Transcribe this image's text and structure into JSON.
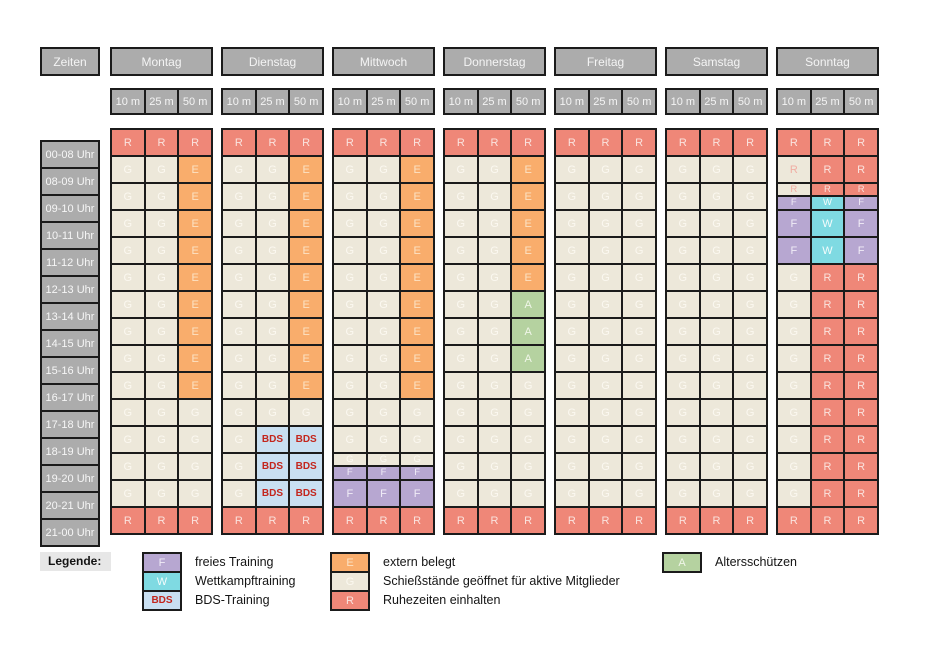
{
  "schedule": {
    "corner_label": "Zeiten",
    "times": [
      "00-08 Uhr",
      "08-09 Uhr",
      "09-10 Uhr",
      "10-11 Uhr",
      "11-12 Uhr",
      "12-13 Uhr",
      "13-14 Uhr",
      "14-15 Uhr",
      "15-16 Uhr",
      "16-17 Uhr",
      "17-18 Uhr",
      "18-19 Uhr",
      "19-20 Uhr",
      "20-21 Uhr",
      "21-00 Uhr"
    ],
    "ranges": [
      "10 m",
      "25 m",
      "50 m"
    ],
    "days": [
      {
        "name": "Montag",
        "cells": [
          [
            "R",
            "R",
            "R"
          ],
          [
            "G",
            "G",
            "E"
          ],
          [
            "G",
            "G",
            "E"
          ],
          [
            "G",
            "G",
            "E"
          ],
          [
            "G",
            "G",
            "E"
          ],
          [
            "G",
            "G",
            "E"
          ],
          [
            "G",
            "G",
            "E"
          ],
          [
            "G",
            "G",
            "E"
          ],
          [
            "G",
            "G",
            "E"
          ],
          [
            "G",
            "G",
            "E"
          ],
          [
            "G",
            "G",
            "G"
          ],
          [
            "G",
            "G",
            "G"
          ],
          [
            "G",
            "G",
            "G"
          ],
          [
            "G",
            "G",
            "G"
          ],
          [
            "R",
            "R",
            "R"
          ]
        ]
      },
      {
        "name": "Dienstag",
        "cells": [
          [
            "R",
            "R",
            "R"
          ],
          [
            "G",
            "G",
            "E"
          ],
          [
            "G",
            "G",
            "E"
          ],
          [
            "G",
            "G",
            "E"
          ],
          [
            "G",
            "G",
            "E"
          ],
          [
            "G",
            "G",
            "E"
          ],
          [
            "G",
            "G",
            "E"
          ],
          [
            "G",
            "G",
            "E"
          ],
          [
            "G",
            "G",
            "E"
          ],
          [
            "G",
            "G",
            "E"
          ],
          [
            "G",
            "G",
            "G"
          ],
          [
            "G",
            "BDS",
            "BDS"
          ],
          [
            "G",
            "BDS",
            "BDS"
          ],
          [
            "G",
            "BDS",
            "BDS"
          ],
          [
            "R",
            "R",
            "R"
          ]
        ]
      },
      {
        "name": "Mittwoch",
        "cells": [
          [
            "R",
            "R",
            "R"
          ],
          [
            "G",
            "G",
            "E"
          ],
          [
            "G",
            "G",
            "E"
          ],
          [
            "G",
            "G",
            "E"
          ],
          [
            "G",
            "G",
            "E"
          ],
          [
            "G",
            "G",
            "E"
          ],
          [
            "G",
            "G",
            "E"
          ],
          [
            "G",
            "G",
            "E"
          ],
          [
            "G",
            "G",
            "E"
          ],
          [
            "G",
            "G",
            "E"
          ],
          [
            "G",
            "G",
            "G"
          ],
          [
            "G",
            "G",
            "G"
          ],
          [
            "G/F",
            "G/F",
            "G/F"
          ],
          [
            "F",
            "F",
            "F"
          ],
          [
            "R",
            "R",
            "R"
          ]
        ]
      },
      {
        "name": "Donnerstag",
        "cells": [
          [
            "R",
            "R",
            "R"
          ],
          [
            "G",
            "G",
            "E"
          ],
          [
            "G",
            "G",
            "E"
          ],
          [
            "G",
            "G",
            "E"
          ],
          [
            "G",
            "G",
            "E"
          ],
          [
            "G",
            "G",
            "E"
          ],
          [
            "G",
            "G",
            "A"
          ],
          [
            "G",
            "G",
            "A"
          ],
          [
            "G",
            "G",
            "A"
          ],
          [
            "G",
            "G",
            "G"
          ],
          [
            "G",
            "G",
            "G"
          ],
          [
            "G",
            "G",
            "G"
          ],
          [
            "G",
            "G",
            "G"
          ],
          [
            "G",
            "G",
            "G"
          ],
          [
            "R",
            "R",
            "R"
          ]
        ]
      },
      {
        "name": "Freitag",
        "cells": [
          [
            "R",
            "R",
            "R"
          ],
          [
            "G",
            "G",
            "G"
          ],
          [
            "G",
            "G",
            "G"
          ],
          [
            "G",
            "G",
            "G"
          ],
          [
            "G",
            "G",
            "G"
          ],
          [
            "G",
            "G",
            "G"
          ],
          [
            "G",
            "G",
            "G"
          ],
          [
            "G",
            "G",
            "G"
          ],
          [
            "G",
            "G",
            "G"
          ],
          [
            "G",
            "G",
            "G"
          ],
          [
            "G",
            "G",
            "G"
          ],
          [
            "G",
            "G",
            "G"
          ],
          [
            "G",
            "G",
            "G"
          ],
          [
            "G",
            "G",
            "G"
          ],
          [
            "R",
            "R",
            "R"
          ]
        ]
      },
      {
        "name": "Samstag",
        "cells": [
          [
            "R",
            "R",
            "R"
          ],
          [
            "G",
            "G",
            "G"
          ],
          [
            "G",
            "G",
            "G"
          ],
          [
            "G",
            "G",
            "G"
          ],
          [
            "G",
            "G",
            "G"
          ],
          [
            "G",
            "G",
            "G"
          ],
          [
            "G",
            "G",
            "G"
          ],
          [
            "G",
            "G",
            "G"
          ],
          [
            "G",
            "G",
            "G"
          ],
          [
            "G",
            "G",
            "G"
          ],
          [
            "G",
            "G",
            "G"
          ],
          [
            "G",
            "G",
            "G"
          ],
          [
            "G",
            "G",
            "G"
          ],
          [
            "G",
            "G",
            "G"
          ],
          [
            "R",
            "R",
            "R"
          ]
        ]
      },
      {
        "name": "Sonntag",
        "cells": [
          [
            "R",
            "R",
            "R"
          ],
          [
            "Rg",
            "R",
            "R"
          ],
          [
            "Rg/F",
            "R/W",
            "R/F"
          ],
          [
            "F",
            "W",
            "F"
          ],
          [
            "F",
            "W",
            "F"
          ],
          [
            "G",
            "R",
            "R"
          ],
          [
            "G",
            "R",
            "R"
          ],
          [
            "G",
            "R",
            "R"
          ],
          [
            "G",
            "R",
            "R"
          ],
          [
            "G",
            "R",
            "R"
          ],
          [
            "G",
            "R",
            "R"
          ],
          [
            "G",
            "R",
            "R"
          ],
          [
            "G",
            "R",
            "R"
          ],
          [
            "G",
            "R",
            "R"
          ],
          [
            "R",
            "R",
            "R"
          ]
        ]
      }
    ]
  },
  "codes": {
    "R": {
      "letter": "R",
      "bg": "#EF8778",
      "fg": "#FAE3DE"
    },
    "G": {
      "letter": "G",
      "bg": "#EDE8DA",
      "fg": "#FBF8F0"
    },
    "E": {
      "letter": "E",
      "bg": "#F9AD6C",
      "fg": "#FCE2C4"
    },
    "F": {
      "letter": "F",
      "bg": "#B7A7D1",
      "fg": "#F0ECF7"
    },
    "W": {
      "letter": "W",
      "bg": "#7FDAE2",
      "fg": "#F4FCFC"
    },
    "A": {
      "letter": "A",
      "bg": "#B5D2A0",
      "fg": "#F0F6E8"
    },
    "BDS": {
      "letter": "BDS",
      "bg": "#C9DFF1",
      "fg": "#C3251C",
      "bold": true
    },
    "Rg": {
      "letter": "R",
      "bg": "#EDE8DA",
      "fg": "#F0ADA3"
    }
  },
  "palette": {
    "header_bg": "#ACACAC",
    "header_text": "#F4F4F4",
    "grid_border": "#1B1B1B",
    "legend_title_bg": "#E7E7E7",
    "page_bg": "#FFFFFF"
  },
  "legend": {
    "title": "Legende:",
    "groups": [
      {
        "items": [
          {
            "code": "F",
            "label": "freies Training"
          },
          {
            "code": "W",
            "label": "Wettkampftraining"
          },
          {
            "code": "BDS",
            "label": "BDS-Training"
          }
        ]
      },
      {
        "items": [
          {
            "code": "E",
            "label": "extern belegt"
          },
          {
            "code": "G",
            "label": "Schießstände geöffnet für aktive Mitglieder"
          },
          {
            "code": "R",
            "label": "Ruhezeiten einhalten"
          }
        ]
      },
      {
        "items": [
          {
            "code": "A",
            "label": "Altersschützen"
          }
        ]
      }
    ]
  }
}
